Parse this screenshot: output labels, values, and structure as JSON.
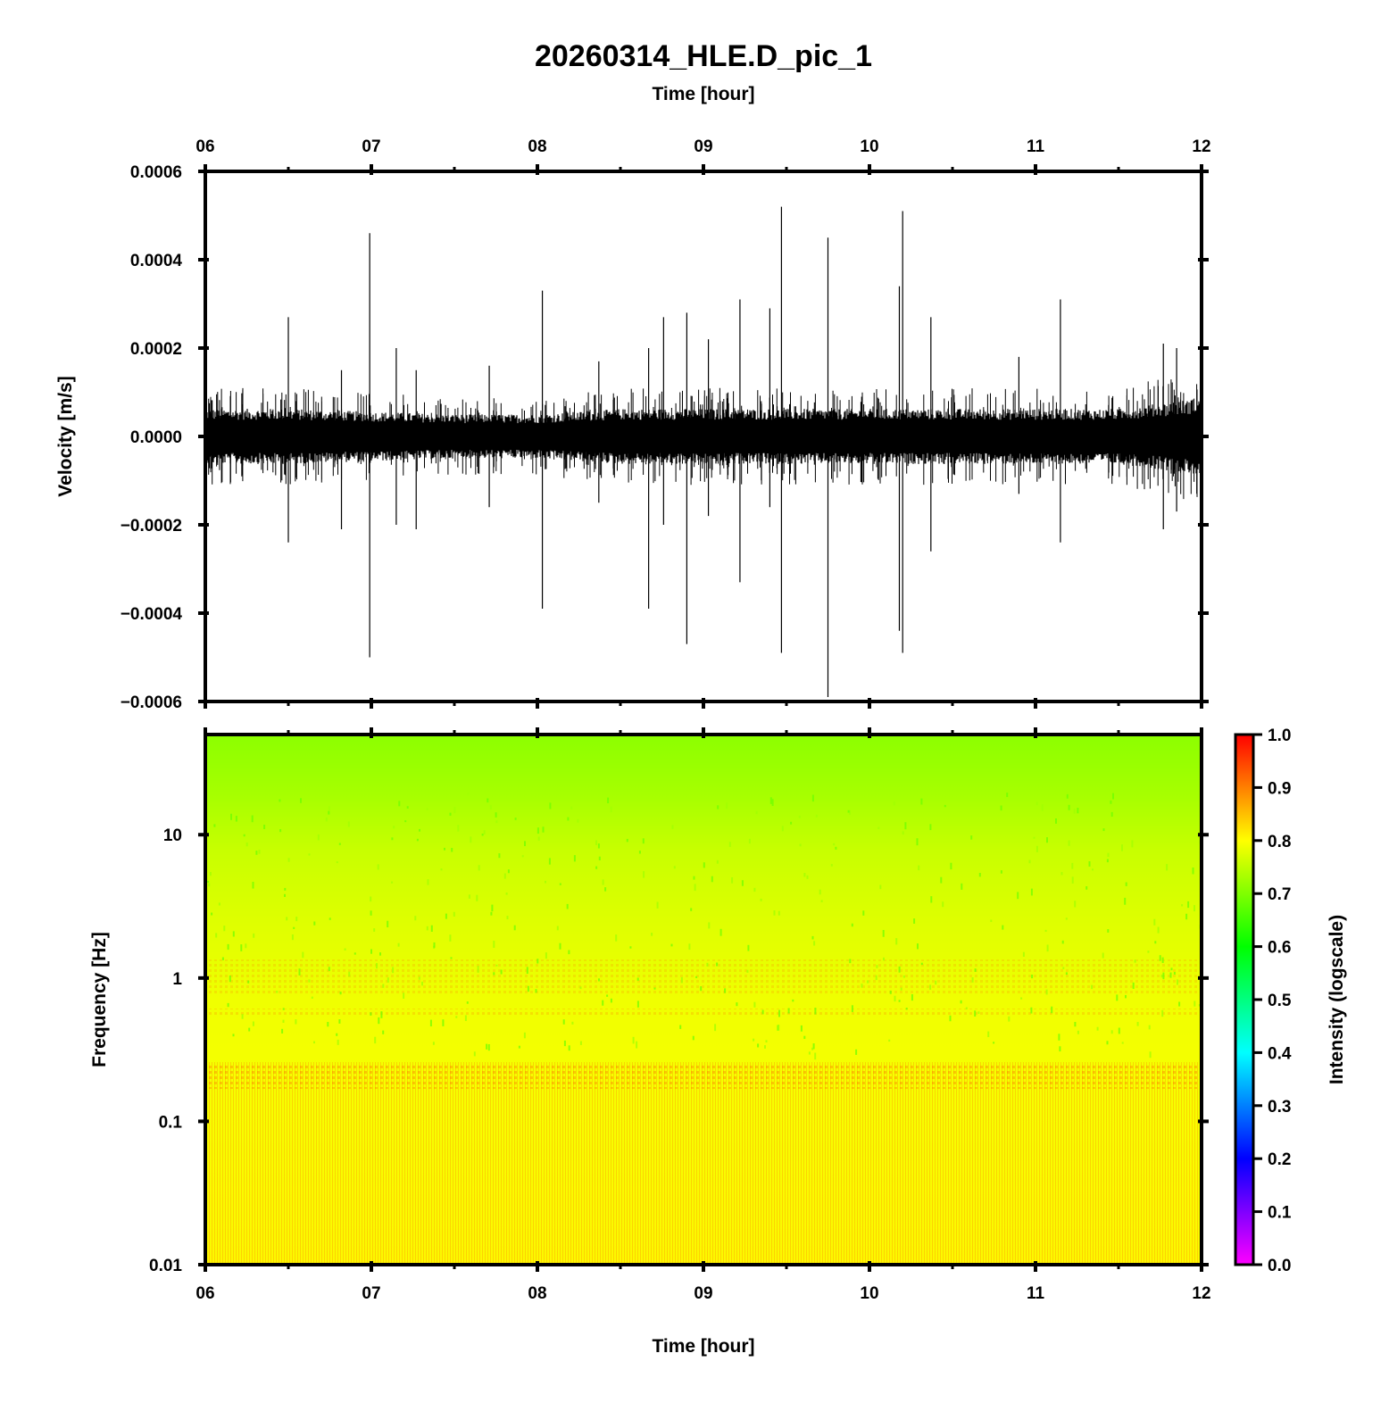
{
  "figure": {
    "title": "20260314_HLE.D_pic_1",
    "top_xlabel": "Time [hour]",
    "bottom_xlabel": "Time [hour]"
  },
  "chart_data": [
    {
      "type": "line",
      "panel": "waveform",
      "xlabel": "Time [hour]",
      "ylabel": "Velocity [m/s]",
      "x_ticks": [
        "06",
        "07",
        "08",
        "09",
        "10",
        "11",
        "12"
      ],
      "xlim": [
        6,
        12
      ],
      "ylim": [
        -0.0006,
        0.0006
      ],
      "y_ticks": [
        0.0006,
        0.0004,
        0.0002,
        0.0,
        -0.0002,
        -0.0004,
        -0.0006
      ],
      "y_tick_labels": [
        "0.0006",
        "0.0004",
        "0.0002",
        "0.0000",
        "−0.0002",
        "−0.0004",
        "−0.0006"
      ],
      "color": "#000000",
      "noise_envelope": {
        "x": [
          6.0,
          6.5,
          7.0,
          7.5,
          8.0,
          8.5,
          9.0,
          9.5,
          10.0,
          10.5,
          11.0,
          11.5,
          12.0
        ],
        "amplitude": [
          5e-05,
          5e-05,
          4.5e-05,
          4e-05,
          4e-05,
          5e-05,
          5e-05,
          5e-05,
          5e-05,
          5e-05,
          5e-05,
          5e-05,
          7e-05
        ]
      },
      "spikes": [
        {
          "x": 6.5,
          "max": 0.00027,
          "min": -0.00024
        },
        {
          "x": 6.82,
          "max": 0.00015,
          "min": -0.00021
        },
        {
          "x": 6.99,
          "max": 0.00046,
          "min": -0.0005
        },
        {
          "x": 7.15,
          "max": 0.0002,
          "min": -0.0002
        },
        {
          "x": 7.27,
          "max": 0.00015,
          "min": -0.00021
        },
        {
          "x": 7.71,
          "max": 0.00016,
          "min": -0.00016
        },
        {
          "x": 8.03,
          "max": 0.00033,
          "min": -0.00039
        },
        {
          "x": 8.37,
          "max": 0.00017,
          "min": -0.00015
        },
        {
          "x": 8.67,
          "max": 0.0002,
          "min": -0.00039
        },
        {
          "x": 8.76,
          "max": 0.00027,
          "min": -0.0002
        },
        {
          "x": 8.9,
          "max": 0.00028,
          "min": -0.00047
        },
        {
          "x": 9.03,
          "max": 0.00022,
          "min": -0.00018
        },
        {
          "x": 9.22,
          "max": 0.00031,
          "min": -0.00033
        },
        {
          "x": 9.4,
          "max": 0.00029,
          "min": -0.00016
        },
        {
          "x": 9.47,
          "max": 0.00052,
          "min": -0.00049
        },
        {
          "x": 9.75,
          "max": 0.00045,
          "min": -0.00059
        },
        {
          "x": 10.18,
          "max": 0.00034,
          "min": -0.00044
        },
        {
          "x": 10.2,
          "max": 0.00051,
          "min": -0.00049
        },
        {
          "x": 10.37,
          "max": 0.00027,
          "min": -0.00026
        },
        {
          "x": 10.9,
          "max": 0.00018,
          "min": -0.00013
        },
        {
          "x": 11.15,
          "max": 0.00031,
          "min": -0.00024
        },
        {
          "x": 11.77,
          "max": 0.00021,
          "min": -0.00021
        },
        {
          "x": 11.85,
          "max": 0.0002,
          "min": -0.00017
        }
      ]
    },
    {
      "type": "heatmap",
      "panel": "spectrogram",
      "xlabel": "Time [hour]",
      "ylabel": "Frequency [Hz]",
      "x_ticks": [
        "06",
        "07",
        "08",
        "09",
        "10",
        "11",
        "12"
      ],
      "xlim": [
        6,
        12
      ],
      "ylim": [
        0.01,
        50
      ],
      "y_scale": "log",
      "y_ticks": [
        10,
        1,
        0.1,
        0.01
      ],
      "y_tick_labels": [
        "10",
        "1",
        "0.1",
        "0.01"
      ],
      "intensity_profile": {
        "frequency": [
          0.01,
          0.05,
          0.15,
          0.25,
          0.5,
          1,
          2,
          5,
          10,
          20,
          50
        ],
        "intensity": [
          0.8,
          0.79,
          0.79,
          0.83,
          0.78,
          0.78,
          0.76,
          0.73,
          0.71,
          0.69,
          0.67
        ]
      },
      "colorbar": {
        "label": "Intensity (logscale)",
        "range": [
          0.0,
          1.0
        ],
        "ticks": [
          "1.0",
          "0.9",
          "0.8",
          "0.7",
          "0.6",
          "0.5",
          "0.4",
          "0.3",
          "0.2",
          "0.1",
          "0.0"
        ],
        "colormap": [
          "#ff00ff",
          "#0000ff",
          "#00ffff",
          "#00ff00",
          "#ffff00",
          "#ff0000"
        ]
      }
    }
  ]
}
